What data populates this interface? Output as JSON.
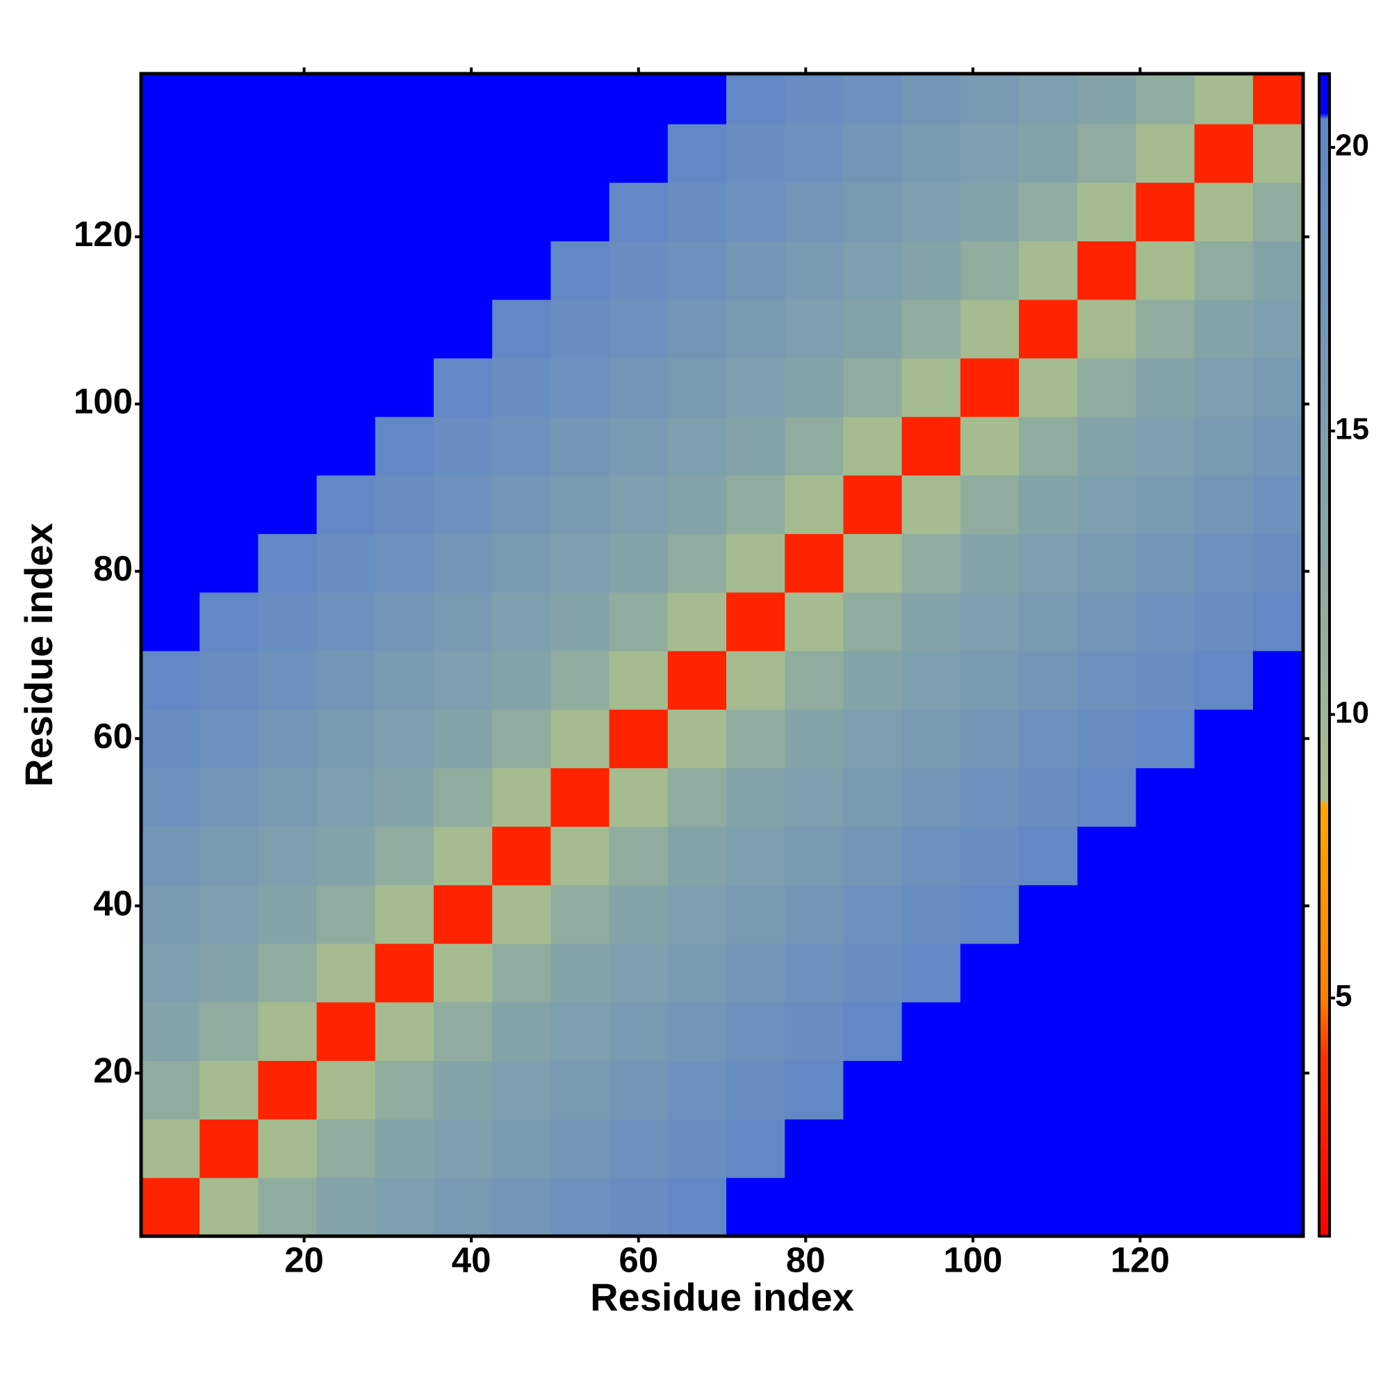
{
  "chart_data": {
    "type": "heatmap",
    "x_label": "Residue index",
    "y_label": "Residue index",
    "xlim": [
      0.5,
      139.5
    ],
    "ylim": [
      0.5,
      139.5
    ],
    "xticks": [
      20,
      40,
      60,
      80,
      100,
      120
    ],
    "yticks": [
      20,
      40,
      60,
      80,
      100,
      120
    ],
    "x_edges": [
      0.5,
      7.5,
      14.5,
      21.5,
      28.5,
      35.5,
      42.5,
      49.5,
      56.5,
      63.5,
      70.5,
      77.5,
      84.5,
      91.5,
      98.5,
      105.5,
      112.5,
      119.5,
      126.5,
      133.5,
      139.5
    ],
    "y_edges": [
      0.5,
      7.5,
      14.5,
      21.5,
      28.5,
      35.5,
      42.5,
      49.5,
      56.5,
      63.5,
      70.5,
      77.5,
      84.5,
      91.5,
      98.5,
      105.5,
      112.5,
      119.5,
      126.5,
      133.5,
      139.5
    ],
    "values": [
      [
        3,
        9,
        12,
        14,
        15,
        16,
        17,
        18,
        19,
        20,
        21,
        21,
        21,
        21,
        21,
        21,
        21,
        21,
        21,
        21
      ],
      [
        9,
        3,
        9,
        12,
        14,
        15,
        16,
        17,
        18,
        19,
        20,
        21,
        21,
        21,
        21,
        21,
        21,
        21,
        21,
        21
      ],
      [
        12,
        9,
        3,
        9,
        12,
        14,
        15,
        16,
        17,
        18,
        19,
        20,
        21,
        21,
        21,
        21,
        21,
        21,
        21,
        21
      ],
      [
        14,
        12,
        9,
        3,
        9,
        12,
        14,
        15,
        16,
        17,
        18,
        19,
        20,
        21,
        21,
        21,
        21,
        21,
        21,
        21
      ],
      [
        15,
        14,
        12,
        9,
        3,
        9,
        12,
        14,
        15,
        16,
        17,
        18,
        19,
        20,
        21,
        21,
        21,
        21,
        21,
        21
      ],
      [
        16,
        15,
        14,
        12,
        9,
        3,
        9,
        12,
        14,
        15,
        16,
        17,
        18,
        19,
        20,
        21,
        21,
        21,
        21,
        21
      ],
      [
        17,
        16,
        15,
        14,
        12,
        9,
        3,
        9,
        12,
        14,
        15,
        16,
        17,
        18,
        19,
        20,
        21,
        21,
        21,
        21
      ],
      [
        18,
        17,
        16,
        15,
        14,
        12,
        9,
        3,
        9,
        12,
        14,
        15,
        16,
        17,
        18,
        19,
        20,
        21,
        21,
        21
      ],
      [
        19,
        18,
        17,
        16,
        15,
        14,
        12,
        9,
        3,
        9,
        12,
        14,
        15,
        16,
        17,
        18,
        19,
        20,
        21,
        21
      ],
      [
        20,
        19,
        18,
        17,
        16,
        15,
        14,
        12,
        9,
        3,
        9,
        12,
        14,
        15,
        16,
        17,
        18,
        19,
        20,
        21
      ],
      [
        21,
        20,
        19,
        18,
        17,
        16,
        15,
        14,
        12,
        9,
        3,
        9,
        12,
        14,
        15,
        16,
        17,
        18,
        19,
        20
      ],
      [
        21,
        21,
        20,
        19,
        18,
        17,
        16,
        15,
        14,
        12,
        9,
        3,
        9,
        12,
        14,
        15,
        16,
        17,
        18,
        19
      ],
      [
        21,
        21,
        21,
        20,
        19,
        18,
        17,
        16,
        15,
        14,
        12,
        9,
        3,
        9,
        12,
        14,
        15,
        16,
        17,
        18
      ],
      [
        21,
        21,
        21,
        21,
        20,
        19,
        18,
        17,
        16,
        15,
        14,
        12,
        9,
        3,
        9,
        12,
        14,
        15,
        16,
        17
      ],
      [
        21,
        21,
        21,
        21,
        21,
        20,
        19,
        18,
        17,
        16,
        15,
        14,
        12,
        9,
        3,
        9,
        12,
        14,
        15,
        16
      ],
      [
        21,
        21,
        21,
        21,
        21,
        21,
        20,
        19,
        18,
        17,
        16,
        15,
        14,
        12,
        9,
        3,
        9,
        12,
        14,
        15
      ],
      [
        21,
        21,
        21,
        21,
        21,
        21,
        21,
        20,
        19,
        18,
        17,
        16,
        15,
        14,
        12,
        9,
        3,
        9,
        12,
        14
      ],
      [
        21,
        21,
        21,
        21,
        21,
        21,
        21,
        21,
        20,
        19,
        18,
        17,
        16,
        15,
        14,
        12,
        9,
        3,
        9,
        12
      ],
      [
        21,
        21,
        21,
        21,
        21,
        21,
        21,
        21,
        21,
        20,
        19,
        18,
        17,
        16,
        15,
        14,
        12,
        9,
        3,
        9
      ],
      [
        21,
        21,
        21,
        21,
        21,
        21,
        21,
        21,
        21,
        21,
        20,
        19,
        18,
        17,
        16,
        15,
        14,
        12,
        9,
        3
      ]
    ],
    "zlim": [
      0.8,
      21.3
    ],
    "zticks": [
      5,
      10,
      15,
      20
    ],
    "colorscale": [
      {
        "value": 0.8,
        "color": "#ff0000"
      },
      {
        "value": 4,
        "color": "#ff3300"
      },
      {
        "value": 5,
        "color": "#ff8000"
      },
      {
        "value": 8.4,
        "color": "#ffa500"
      },
      {
        "value": 8.5,
        "color": "#a9bf8f"
      },
      {
        "value": 12,
        "color": "#8fac9f"
      },
      {
        "value": 20.5,
        "color": "#5f86c8"
      },
      {
        "value": 20.6,
        "color": "#0000ff"
      },
      {
        "value": 21.3,
        "color": "#0000ff"
      }
    ]
  }
}
